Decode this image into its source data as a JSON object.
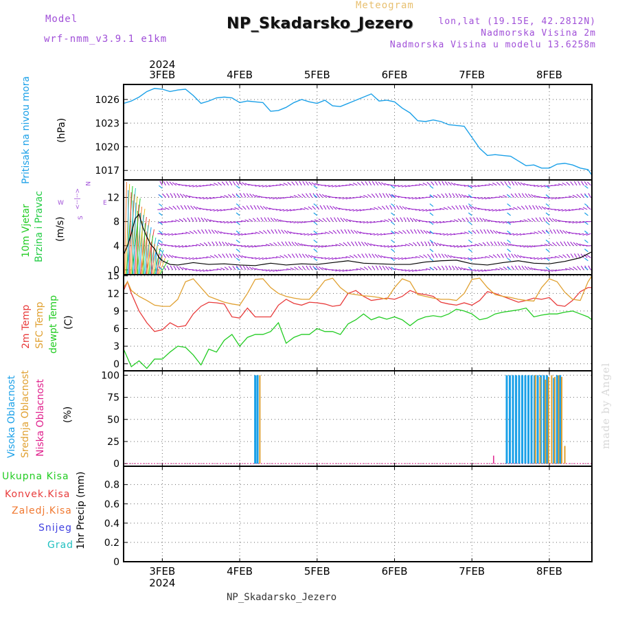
{
  "header": {
    "model_label": "Model",
    "model_name": "wrf-nmm_v3.9.1 e1km",
    "meteogram_label": "Meteogram",
    "station": "NP_Skadarsko_Jezero",
    "lonlat": "lon,lat (19.15E, 42.2812N)",
    "elevation": "Nadmorska Visina 2m",
    "model_elevation": "Nadmorska Visina u modelu 13.6258m",
    "year": "2024",
    "watermark": "made by Angel"
  },
  "footer": {
    "station": "NP_Skadarsko_Jezero",
    "year": "2024"
  },
  "time_axis": {
    "labels": [
      "3FEB",
      "4FEB",
      "5FEB",
      "6FEB",
      "7FEB",
      "8FEB"
    ],
    "day_positions": [
      1,
      2,
      3,
      4,
      5,
      6
    ],
    "range": [
      0.5,
      6.55
    ]
  },
  "colors": {
    "pressure": "#1aa0e8",
    "wind_label": "#22cc22",
    "wind_label2": "#22cc44",
    "temp2m": "#e83a3a",
    "sfc": "#e0a030",
    "dew": "#22cc22",
    "high_cloud": "#1aa0e8",
    "mid_cloud": "#e0a030",
    "low_cloud": "#e0208c",
    "total_precip": "#22cc22",
    "conv_precip": "#e83a3a",
    "frozen_precip": "#f07830",
    "snow": "#4040e0",
    "graupel": "#20c0c0",
    "wind_barb": "#9a22cc"
  },
  "panels": {
    "pressure": {
      "label": "Pritisak na nivou mora",
      "unit": "(hPa)",
      "yticks": [
        "1017",
        "1020",
        "1023",
        "1026"
      ]
    },
    "wind": {
      "label1": "10m Vjetar",
      "label2": "Brzina i Pravac",
      "unit": "(m/s)",
      "yticks": [
        "0",
        "4",
        "8",
        "12"
      ],
      "compass_n": "N",
      "compass_s": "S",
      "compass_w": "W",
      "compass_e": "E",
      "compass_mid": "<--|-->"
    },
    "temp": {
      "label_2m": "2m Temp",
      "label_sfc": "SFC Temp",
      "label_dew": "dewpt Temp",
      "unit": "(C)",
      "yticks": [
        "0",
        "3",
        "6",
        "9",
        "12",
        "15"
      ]
    },
    "cloud": {
      "label_high": "Visoka Oblacnost",
      "label_mid": "Srednja Oblacnost",
      "label_low": "Niska Oblacnost",
      "unit": "(%)",
      "yticks": [
        "0",
        "25",
        "50",
        "75",
        "100"
      ]
    },
    "precip": {
      "legend": [
        "Ukupna Kisa",
        "Konvek.Kisa",
        "Zaledj.Kisa",
        "Snijeg",
        "Grad"
      ],
      "unit": "1hr Precip (mm)",
      "yticks": [
        "0",
        "0.2",
        "0.4",
        "0.6",
        "0.8"
      ]
    }
  },
  "chart_data": [
    {
      "type": "line",
      "title": "Pritisak na nivou mora",
      "ylabel": "(hPa)",
      "ylim": [
        1015.8,
        1027.9
      ],
      "series": [
        {
          "name": "Pritisak na nivou mora",
          "x": [
            0.5,
            0.6,
            0.7,
            0.8,
            0.9,
            1.0,
            1.1,
            1.2,
            1.3,
            1.4,
            1.5,
            1.6,
            1.7,
            1.8,
            1.9,
            2.0,
            2.1,
            2.2,
            2.3,
            2.4,
            2.5,
            2.6,
            2.7,
            2.8,
            2.9,
            3.0,
            3.1,
            3.2,
            3.3,
            3.4,
            3.5,
            3.6,
            3.7,
            3.8,
            3.9,
            4.0,
            4.1,
            4.2,
            4.3,
            4.4,
            4.5,
            4.6,
            4.7,
            4.8,
            4.9,
            5.0,
            5.1,
            5.2,
            5.3,
            5.4,
            5.5,
            5.6,
            5.7,
            5.8,
            5.9,
            6.0,
            6.1,
            6.2,
            6.3,
            6.4,
            6.5,
            6.55
          ],
          "values": [
            1025.5,
            1025.8,
            1026.3,
            1027.0,
            1027.4,
            1027.3,
            1027.0,
            1027.2,
            1027.3,
            1026.5,
            1025.5,
            1025.8,
            1026.2,
            1026.3,
            1026.2,
            1025.6,
            1025.8,
            1025.7,
            1025.6,
            1024.5,
            1024.6,
            1025.0,
            1025.6,
            1026.0,
            1025.7,
            1025.5,
            1025.9,
            1025.2,
            1025.1,
            1025.5,
            1025.9,
            1026.3,
            1026.7,
            1025.8,
            1025.9,
            1025.7,
            1024.9,
            1024.3,
            1023.3,
            1023.2,
            1023.4,
            1023.2,
            1022.8,
            1022.7,
            1022.6,
            1021.2,
            1019.8,
            1018.9,
            1019.0,
            1018.9,
            1018.8,
            1018.2,
            1017.6,
            1017.7,
            1017.3,
            1017.3,
            1017.8,
            1017.9,
            1017.7,
            1017.3,
            1017.1,
            1016.4
          ]
        }
      ]
    },
    {
      "type": "line",
      "title": "10m Vjetar Brzina i Pravac",
      "ylabel": "(m/s)",
      "ylim": [
        -0.8,
        14.9
      ],
      "series": [
        {
          "name": "10m Vjetar",
          "x": [
            0.5,
            0.55,
            0.6,
            0.65,
            0.7,
            0.75,
            0.8,
            0.85,
            0.9,
            0.95,
            1.0,
            1.1,
            1.2,
            1.4,
            1.6,
            1.8,
            2.0,
            2.2,
            2.4,
            2.6,
            2.8,
            3.0,
            3.2,
            3.4,
            3.6,
            3.8,
            4.0,
            4.2,
            4.4,
            4.6,
            4.8,
            5.0,
            5.2,
            5.4,
            5.6,
            5.8,
            6.0,
            6.2,
            6.4,
            6.55
          ],
          "values": [
            2.5,
            4.0,
            6.0,
            8.5,
            9.2,
            7.0,
            5.5,
            4.2,
            3.5,
            2.2,
            1.5,
            0.9,
            0.8,
            1.2,
            0.9,
            1.0,
            0.8,
            0.7,
            1.1,
            0.8,
            1.0,
            0.9,
            1.2,
            1.5,
            1.1,
            1.0,
            0.9,
            0.9,
            1.3,
            1.5,
            1.6,
            1.0,
            0.8,
            1.2,
            1.5,
            1.1,
            1.0,
            1.4,
            2.0,
            3.0
          ]
        }
      ]
    },
    {
      "type": "line",
      "title": "Temp",
      "ylabel": "(C)",
      "ylim": [
        -1.2,
        15.2
      ],
      "x": [
        0.5,
        0.55,
        0.6,
        0.7,
        0.8,
        0.9,
        1.0,
        1.1,
        1.2,
        1.3,
        1.4,
        1.5,
        1.6,
        1.7,
        1.8,
        1.9,
        2.0,
        2.1,
        2.2,
        2.3,
        2.4,
        2.5,
        2.6,
        2.7,
        2.8,
        2.9,
        3.0,
        3.1,
        3.2,
        3.3,
        3.4,
        3.5,
        3.6,
        3.7,
        3.8,
        3.9,
        4.0,
        4.1,
        4.2,
        4.3,
        4.4,
        4.5,
        4.6,
        4.7,
        4.8,
        4.9,
        5.0,
        5.1,
        5.2,
        5.3,
        5.4,
        5.5,
        5.6,
        5.7,
        5.8,
        5.9,
        6.0,
        6.1,
        6.2,
        6.3,
        6.4,
        6.5,
        6.55
      ],
      "series": [
        {
          "name": "2m Temp",
          "values": [
            12.5,
            14.0,
            12.0,
            9.0,
            7.0,
            5.5,
            5.8,
            7.0,
            6.3,
            6.5,
            8.5,
            9.8,
            10.5,
            10.4,
            10.2,
            8.0,
            7.8,
            9.5,
            8.0,
            8.0,
            8.0,
            10.0,
            11.0,
            10.3,
            10.0,
            10.5,
            10.4,
            10.2,
            9.8,
            10.0,
            12.0,
            12.5,
            11.5,
            10.8,
            11.0,
            11.2,
            11.0,
            11.5,
            12.5,
            12.0,
            11.8,
            11.5,
            10.5,
            10.2,
            10.0,
            10.4,
            10.0,
            10.8,
            12.3,
            12.0,
            11.5,
            11.0,
            10.5,
            10.8,
            11.2,
            11.0,
            11.3,
            10.0,
            9.8,
            10.8,
            12.3,
            13.0,
            13.0
          ]
        },
        {
          "name": "SFC Temp",
          "values": [
            13.0,
            14.0,
            12.5,
            11.5,
            10.8,
            10.0,
            9.8,
            9.8,
            11.0,
            14.0,
            14.5,
            13.0,
            11.5,
            11.0,
            10.5,
            10.2,
            10.0,
            12.0,
            14.4,
            14.5,
            13.0,
            12.0,
            11.5,
            11.2,
            11.0,
            11.0,
            12.5,
            14.2,
            14.6,
            13.0,
            12.0,
            11.8,
            11.6,
            11.5,
            11.3,
            11.0,
            13.0,
            14.5,
            14.0,
            11.8,
            11.5,
            11.2,
            11.0,
            11.0,
            10.8,
            12.0,
            14.4,
            14.6,
            13.0,
            11.8,
            11.5,
            11.3,
            11.0,
            10.8,
            10.7,
            13.0,
            14.5,
            14.0,
            12.2,
            11.0,
            10.8,
            14.0,
            15.0
          ]
        },
        {
          "name": "dewpt Temp",
          "values": [
            2.5,
            1.0,
            -0.5,
            0.5,
            -0.8,
            0.8,
            0.8,
            2.0,
            3.0,
            2.8,
            1.5,
            -0.2,
            2.5,
            2.0,
            4.0,
            5.0,
            3.0,
            4.5,
            5.0,
            5.0,
            5.5,
            7.0,
            3.5,
            4.5,
            5.0,
            5.0,
            6.0,
            5.5,
            5.5,
            5.0,
            6.8,
            7.5,
            8.5,
            7.5,
            8.0,
            7.6,
            8.0,
            7.5,
            6.5,
            7.5,
            8.0,
            8.2,
            8.0,
            8.5,
            9.3,
            9.0,
            8.5,
            7.5,
            7.8,
            8.5,
            8.8,
            9.0,
            9.2,
            9.5,
            8.0,
            8.3,
            8.5,
            8.5,
            8.8,
            9.0,
            8.5,
            8.0,
            7.5
          ]
        }
      ]
    },
    {
      "type": "bar",
      "title": "Oblacnost",
      "ylabel": "(%)",
      "ylim": [
        -3,
        105
      ],
      "series": [
        {
          "name": "Visoka Oblacnost",
          "x": [
            2.2,
            2.23,
            5.45,
            5.49,
            5.53,
            5.57,
            5.61,
            5.65,
            5.69,
            5.73,
            5.77,
            5.81,
            5.85,
            5.89,
            5.93,
            5.97,
            6.06,
            6.1,
            6.14
          ],
          "values": [
            100,
            100,
            100,
            100,
            100,
            100,
            100,
            100,
            100,
            100,
            100,
            100,
            100,
            100,
            100,
            100,
            97,
            100,
            100
          ]
        },
        {
          "name": "Srednja Oblacnost",
          "x": [
            2.26,
            5.82,
            5.88,
            5.95,
            5.99,
            6.03,
            6.07,
            6.12,
            6.16,
            6.2
          ],
          "values": [
            100,
            100,
            98,
            95,
            98,
            100,
            98,
            100,
            98,
            20
          ]
        },
        {
          "name": "Niska Oblacnost",
          "x": [
            5.28
          ],
          "values": [
            9
          ]
        }
      ]
    },
    {
      "type": "bar",
      "title": "1hr Precip",
      "ylabel": "1hr Precip (mm)",
      "ylim": [
        0,
        0.99
      ],
      "series": [
        {
          "name": "Ukupna Kisa",
          "x": [],
          "values": []
        },
        {
          "name": "Konvek.Kisa",
          "x": [],
          "values": []
        },
        {
          "name": "Zaledj.Kisa",
          "x": [],
          "values": []
        },
        {
          "name": "Snijeg",
          "x": [],
          "values": []
        },
        {
          "name": "Grad",
          "x": [],
          "values": []
        }
      ]
    }
  ]
}
